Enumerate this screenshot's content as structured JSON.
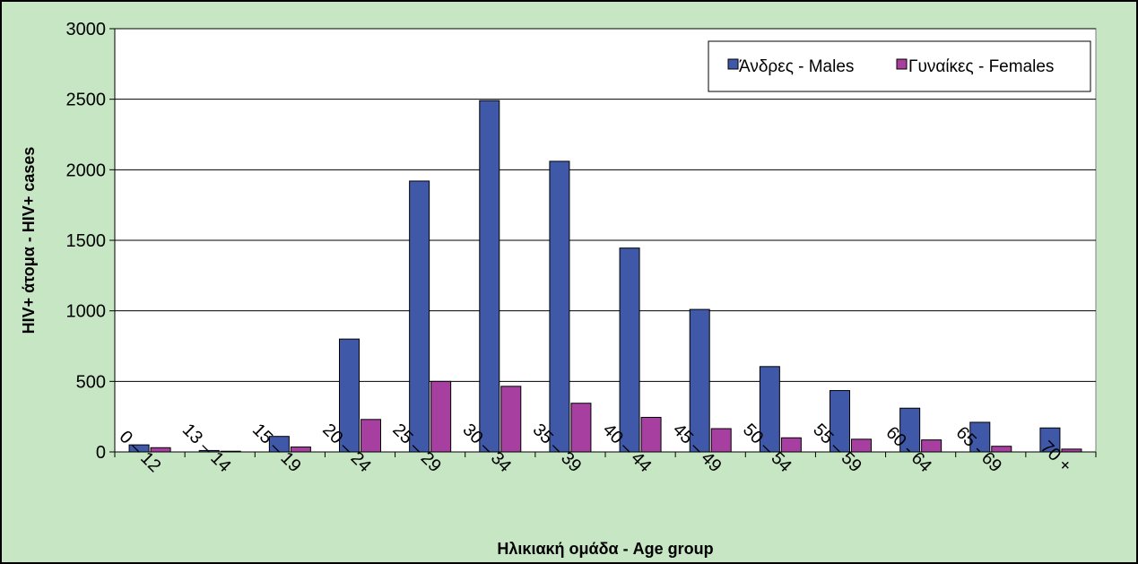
{
  "chart_data": {
    "type": "bar",
    "categories": [
      "0 – 12",
      "13 – 14",
      "15 – 19",
      "20 – 24",
      "25 – 29",
      "30 – 34",
      "35 – 39",
      "40 – 44",
      "45 – 49",
      "50 – 54",
      "55 – 59",
      "60 - 64",
      "65 - 69",
      "70 +"
    ],
    "series": [
      {
        "name": "Άνδρες - Males",
        "color": "#3f58a8",
        "values": [
          50,
          10,
          110,
          800,
          1920,
          2490,
          2060,
          1445,
          1010,
          605,
          435,
          310,
          210,
          170
        ]
      },
      {
        "name": "Γυναίκες - Females",
        "color": "#a63fa0",
        "values": [
          30,
          5,
          35,
          230,
          500,
          465,
          345,
          245,
          165,
          100,
          90,
          85,
          40,
          20
        ]
      }
    ],
    "xlabel": "Ηλικιακή ομάδα - Age group",
    "ylabel": "HIV+ άτομα - HIV+ cases",
    "ylim": [
      0,
      3000
    ],
    "yticks": [
      0,
      500,
      1000,
      1500,
      2000,
      2500,
      3000
    ],
    "grid": true,
    "legend_position": "top-right",
    "background_color": "#c6e6c4",
    "plot_background": "#ffffff"
  }
}
